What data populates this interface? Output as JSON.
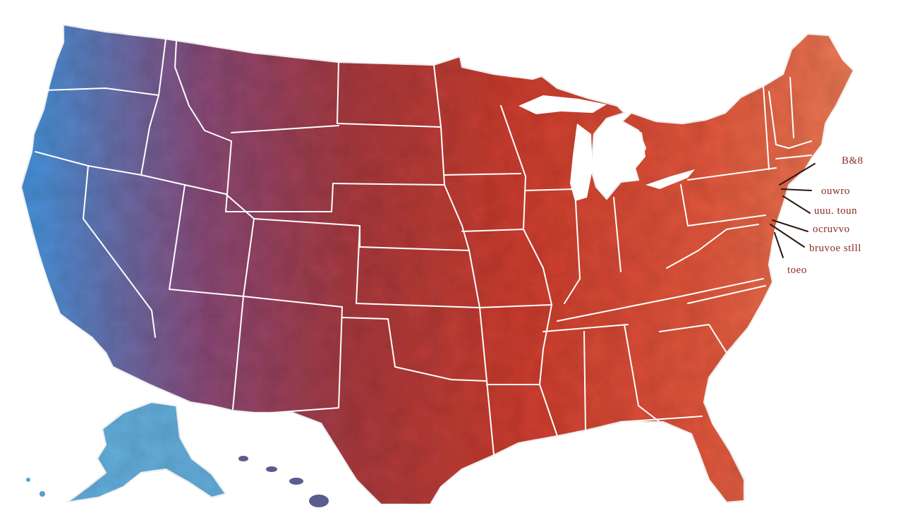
{
  "map": {
    "colors": {
      "west": "#4a8fd6",
      "mountain": "#8a4a78",
      "plains": "#a83a3e",
      "midwest": "#cc3e30",
      "east": "#e1573d",
      "northeast": "#ea7a56",
      "alaska": "#63aedb",
      "hawaii": "#5a5c8e",
      "border": "#ffffff",
      "label": "#8e2a22"
    },
    "callouts": [
      {
        "id": "c1",
        "text": "B&8"
      },
      {
        "id": "c2",
        "text": "ouwro"
      },
      {
        "id": "c3",
        "text": "uuu. toun"
      },
      {
        "id": "c4",
        "text": "ocruvvo"
      },
      {
        "id": "c5",
        "text": "bruvoe stlll"
      },
      {
        "id": "c6",
        "text": "toeo"
      }
    ]
  }
}
